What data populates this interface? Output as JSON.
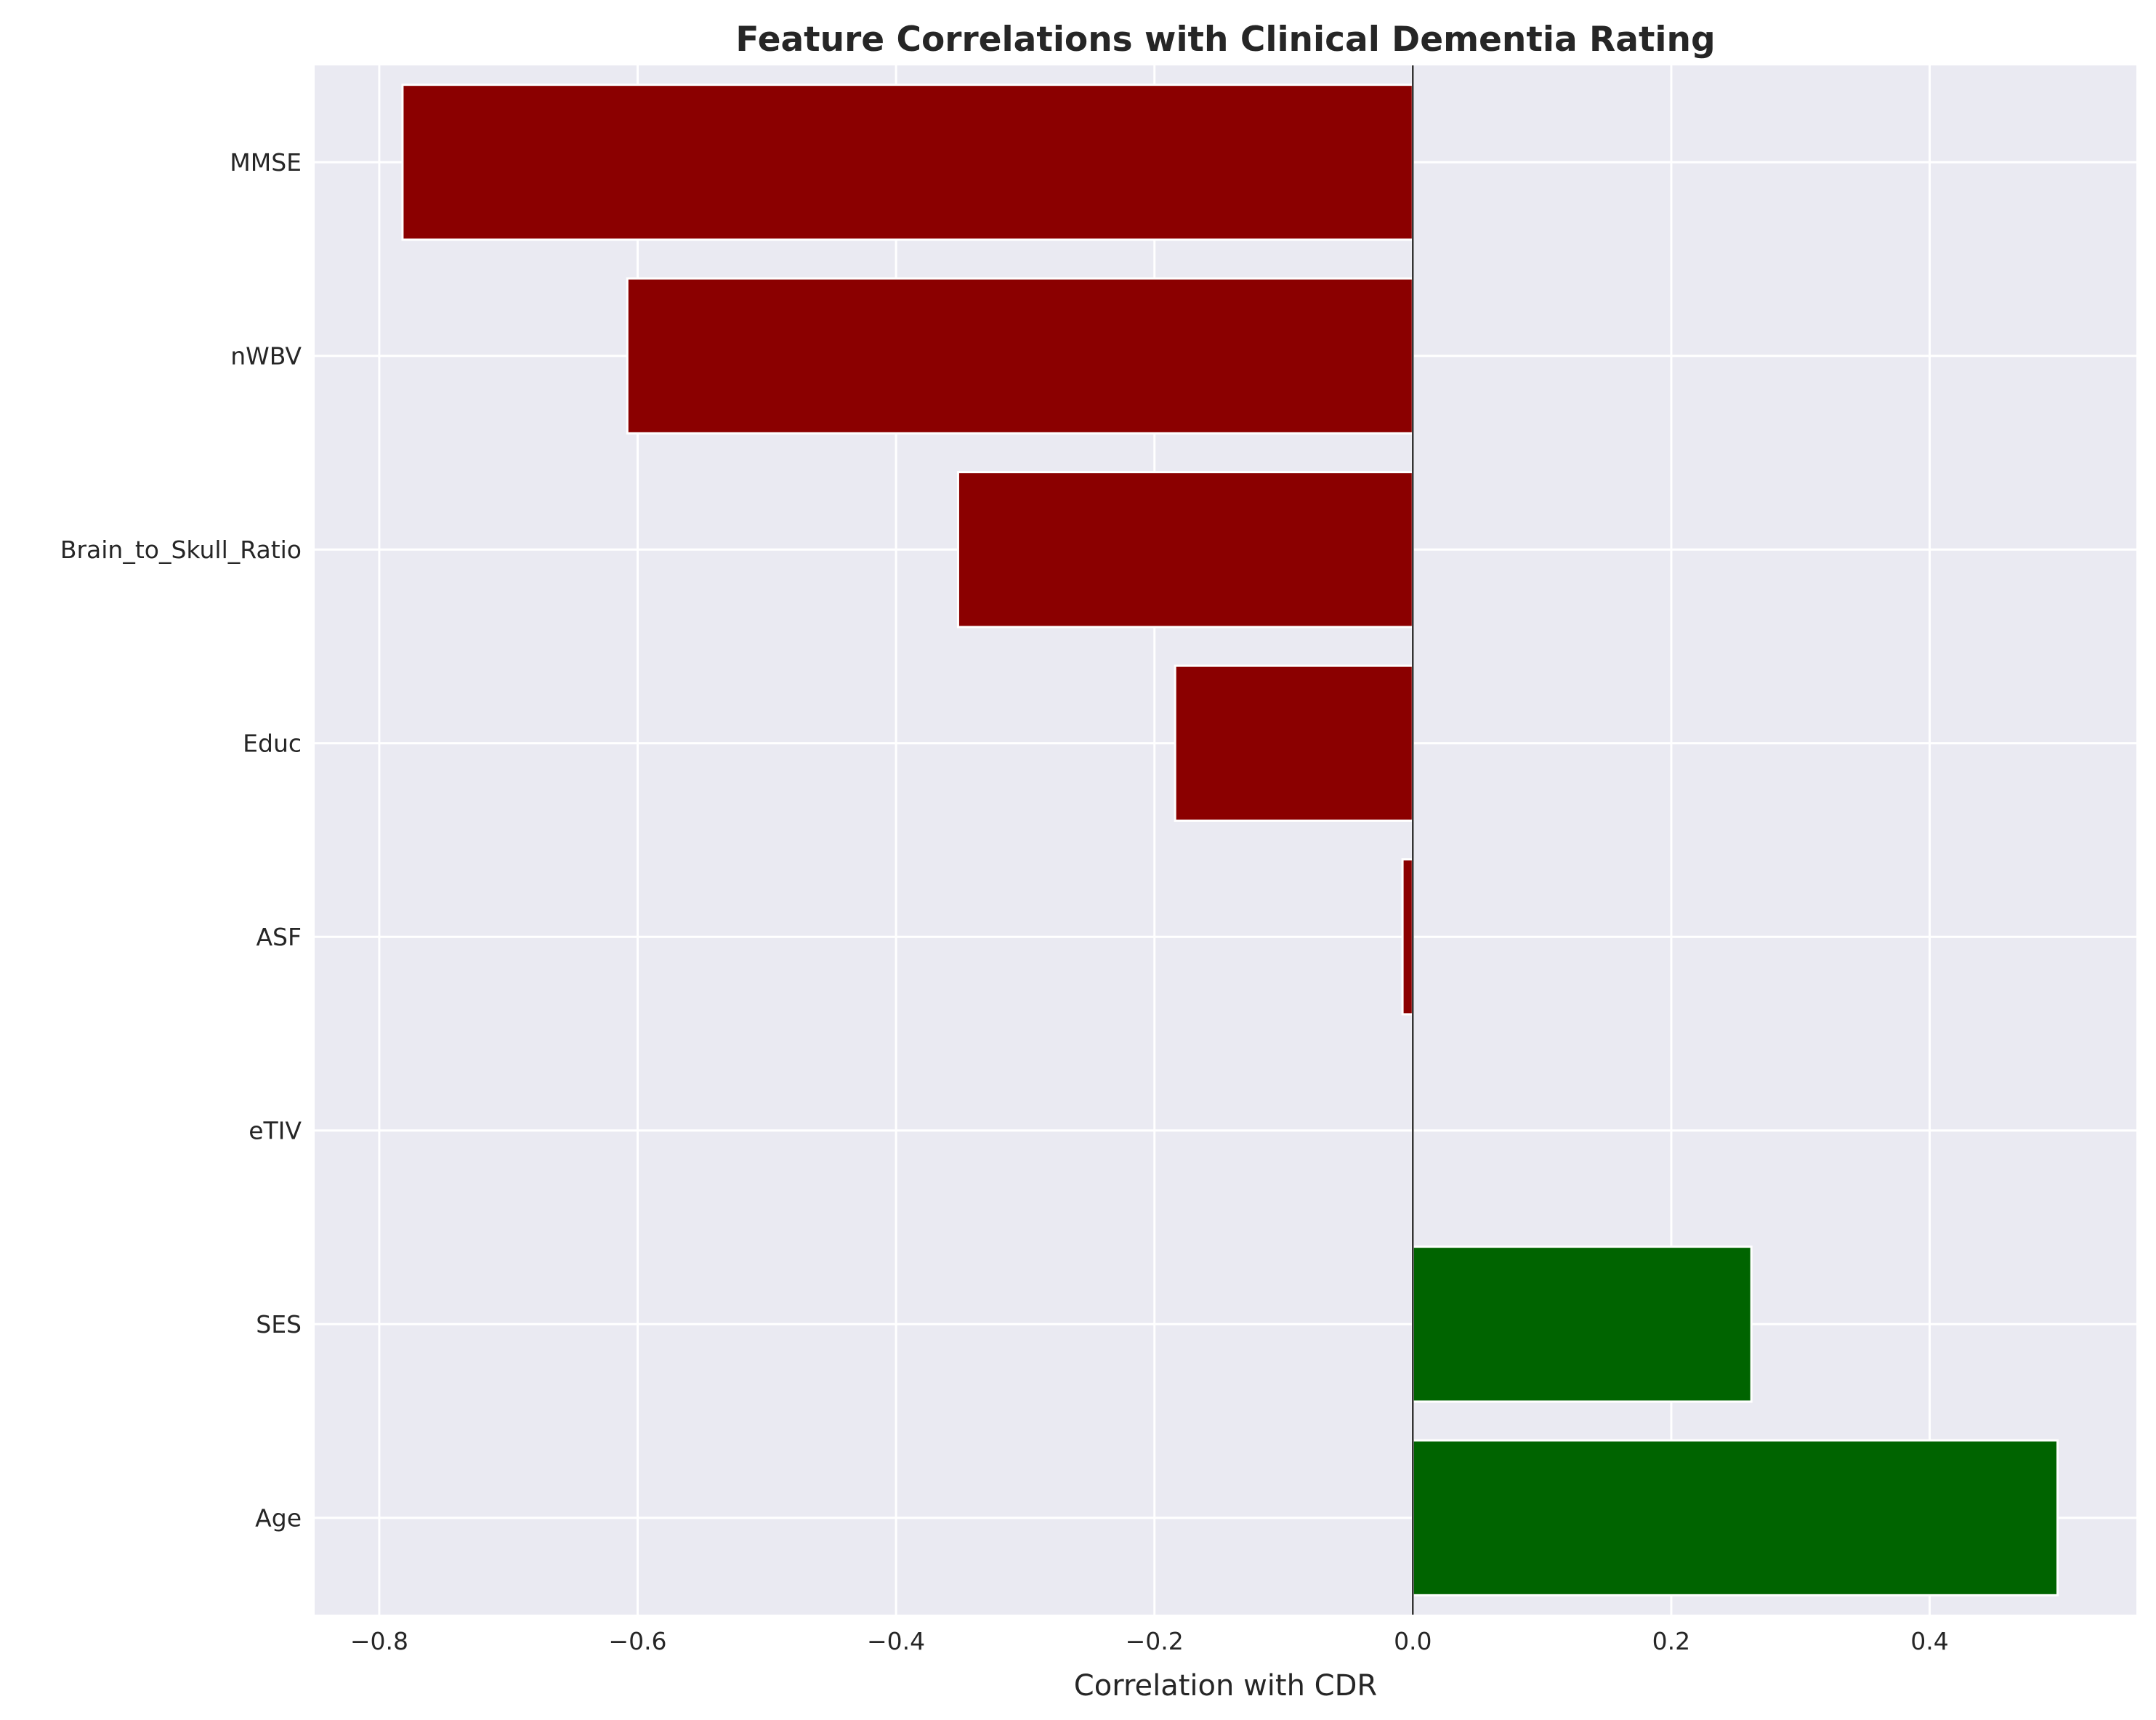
{
  "colors": {
    "plot_background": "#eaeaf2",
    "grid": "#ffffff",
    "negative_bar": "#8b0000",
    "positive_bar": "#006400",
    "zero_line": "#000000",
    "text": "#262626"
  },
  "chart_data": {
    "type": "bar",
    "orientation": "horizontal",
    "title": "Feature Correlations with Clinical Dementia Rating",
    "xlabel": "Correlation with CDR",
    "ylabel": "",
    "xlim": [
      -0.85,
      0.56
    ],
    "xticks": [
      -0.8,
      -0.6,
      -0.4,
      -0.2,
      0.0,
      0.2,
      0.4
    ],
    "xtick_labels": [
      "−0.8",
      "−0.6",
      "−0.4",
      "−0.2",
      "0.0",
      "0.2",
      "0.4"
    ],
    "grid": true,
    "categories": [
      "MMSE",
      "nWBV",
      "Brain_to_Skull_Ratio",
      "Educ",
      "ASF",
      "eTIV",
      "SES",
      "Age"
    ],
    "values": [
      -0.782,
      -0.608,
      -0.352,
      -0.184,
      -0.008,
      0.0,
      0.262,
      0.499
    ]
  }
}
